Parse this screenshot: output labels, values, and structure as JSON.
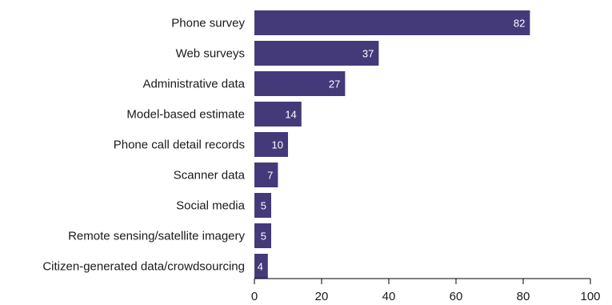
{
  "chart_data": {
    "type": "bar",
    "orientation": "horizontal",
    "categories": [
      "Phone survey",
      "Web surveys",
      "Administrative data",
      "Model-based estimate",
      "Phone call detail records",
      "Scanner data",
      "Social media",
      "Remote sensing/satellite imagery",
      "Citizen-generated data/crowdsourcing"
    ],
    "values": [
      82,
      37,
      27,
      14,
      10,
      7,
      5,
      5,
      4
    ],
    "data_labels": [
      "82",
      "37",
      "27",
      "14",
      "10",
      "7",
      "5",
      "5",
      "4"
    ],
    "xlim": [
      0,
      100
    ],
    "xticks": [
      0,
      20,
      40,
      60,
      80,
      100
    ],
    "xtick_labels": [
      "0",
      "20",
      "40",
      "60",
      "80",
      "100"
    ],
    "bar_color": "#443a7a",
    "data_label_color": "#ffffff",
    "grid": false,
    "legend": "none"
  }
}
